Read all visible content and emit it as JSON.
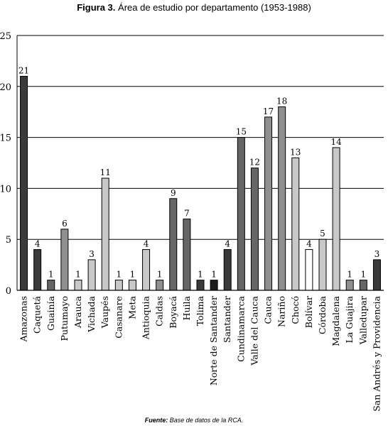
{
  "header": {
    "figure_label": "Figura 3.",
    "figure_title": "Área de estudio por departamento (1953-1988)"
  },
  "footer": {
    "source_label": "Fuente:",
    "source_text": "Base de datos de la RCA."
  },
  "colors": {
    "dark": "#3a3a3a",
    "medium_dark": "#666666",
    "medium": "#8f8f8f",
    "light": "#c8c8c8",
    "very_dark": "#1c1c1c",
    "grid": "#000000"
  },
  "chart_data": {
    "type": "bar",
    "title": "Área de estudio por departamento (1953-1988)",
    "xlabel": "",
    "ylabel": "",
    "ylim": [
      0,
      25
    ],
    "yticks": [
      0,
      5,
      10,
      15,
      20,
      25
    ],
    "grid": true,
    "legend": "none",
    "categories": [
      "Amazonas",
      "Caquetá",
      "Guainía",
      "Putumayo",
      "Arauca",
      "Vichada",
      "Vaupés",
      "Casanare",
      "Meta",
      "Antioquia",
      "Caldas",
      "Boyacá",
      "Huila",
      "Tolima",
      "Norte de Santander",
      "Santander",
      "Cundinamarca",
      "Valle del Cauca",
      "Cauca",
      "Nariño",
      "Chocó",
      "Bolívar",
      "Córdoba",
      "Magdalena",
      "La Guajira",
      "Valledupar",
      "San Andrés y Providencia"
    ],
    "values": [
      21,
      4,
      1,
      6,
      1,
      3,
      11,
      1,
      1,
      4,
      1,
      9,
      7,
      1,
      1,
      4,
      15,
      12,
      17,
      18,
      13,
      4,
      5,
      14,
      1,
      1,
      3
    ],
    "bar_colors": [
      "#3a3a3a",
      "#3a3a3a",
      "#666666",
      "#8f8f8f",
      "#c8c8c8",
      "#c8c8c8",
      "#c8c8c8",
      "#c8c8c8",
      "#c8c8c8",
      "#c8c8c8",
      "#8f8f8f",
      "#666666",
      "#666666",
      "#3a3a3a",
      "#1c1c1c",
      "#3a3a3a",
      "#666666",
      "#666666",
      "#8f8f8f",
      "#8f8f8f",
      "#c8c8c8",
      "#ffffff",
      "#c8c8c8",
      "#c8c8c8",
      "#8f8f8f",
      "#666666",
      "#3a3a3a"
    ]
  }
}
